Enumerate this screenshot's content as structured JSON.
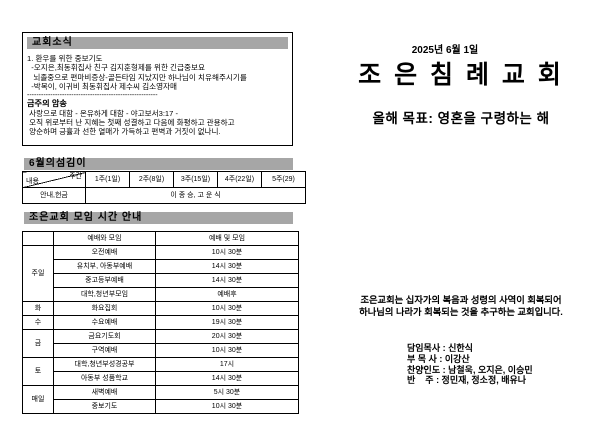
{
  "colors": {
    "title_bar": "#a6a6a6",
    "text": "#000000",
    "page_bg": "#ffffff"
  },
  "left": {
    "news": {
      "title": "교회소식",
      "lines": [
        "1. 환우를 위한 중보기도",
        "  -오지은,최동휘집사 친구 김지훈형제를 위한 긴급중보요",
        "   뇌졸중으로 편마비증상-골든타임 지났지만 하나님이 치유해주시기를",
        "  -박복이, 이귀비 최동휘집사 제수씨 김소영자매"
      ],
      "separator": "--------------------------------------------------------",
      "memory_title": "금주의 암송",
      "memory_lines": [
        " 사랑으로 대함 - 온유하게 대함 - 야고보서3:17 -",
        " 오직 위로부터 난 지혜는 첫째 성결하고 다음에 화평하고 관용하고",
        " 양순하며 긍휼과 선한 열매가 가득하고 편벽과 거짓이 없나니."
      ]
    },
    "servants": {
      "title": "6월의섬김이",
      "corner_top": "주간",
      "corner_bottom": "내용",
      "columns": [
        "1주(1일)",
        "2주(8일)",
        "3주(15일)",
        "4주(22일)",
        "5주(29)"
      ],
      "row_label": "안내,헌금",
      "row_value": "이 종 승, 고 운 식"
    },
    "schedule": {
      "title": "조은교회 모임 시간 안내",
      "header_meeting": "예배와 모임",
      "header_time": "예배 및 모임",
      "groups": [
        {
          "day": "주일",
          "rows": [
            [
              "오전예배",
              "10시 30분"
            ],
            [
              "유치부, 아동부예배",
              "14시 30분"
            ],
            [
              "중고등부예배",
              "14시 30분"
            ],
            [
              "대학,청년부모임",
              "예배후"
            ]
          ]
        },
        {
          "day": "화",
          "rows": [
            [
              "화요집회",
              "10시 30분"
            ]
          ]
        },
        {
          "day": "수",
          "rows": [
            [
              "수요예배",
              "19시 30분"
            ]
          ]
        },
        {
          "day": "금",
          "rows": [
            [
              "금요기도회",
              "20시 30분"
            ],
            [
              "구역예배",
              "10시 30분"
            ]
          ]
        },
        {
          "day": "토",
          "rows": [
            [
              "대학,청년부성경공부",
              "17시"
            ],
            [
              "아동부 성품학교",
              "14시 30분"
            ]
          ]
        },
        {
          "day": "매일",
          "rows": [
            [
              "새벽예배",
              "5시 30분"
            ],
            [
              "중보기도",
              "10시 30분"
            ]
          ]
        }
      ]
    }
  },
  "right": {
    "date": "2025년 6월 1일",
    "church_name": "조 은 침 례 교 회",
    "goal": "올해 목표: 영혼을 구령하는 해",
    "mission_lines": [
      "조은교회는 십자가의 복음과 성령의 사역이 회복되어",
      "하나님의 나라가 회복되는 것을 추구하는 교회입니다."
    ],
    "staff_lines": [
      "담임목사 : 신한식",
      "부 목 사 : 이강산",
      "찬양인도 : 남철욱, 오지은, 이승민",
      "반    주 : 정민재, 정소정, 배유나"
    ]
  }
}
